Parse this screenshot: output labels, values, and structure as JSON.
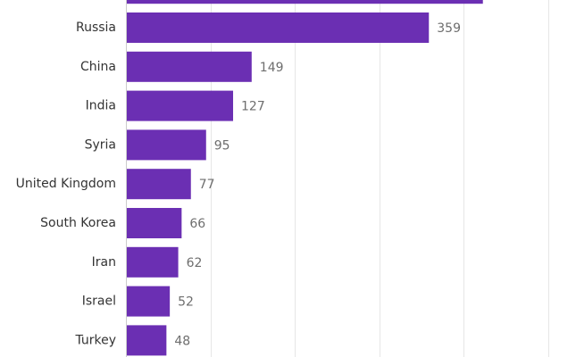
{
  "chart_data": {
    "type": "bar",
    "orientation": "horizontal",
    "categories": [
      "Russia",
      "China",
      "India",
      "Syria",
      "United Kingdom",
      "South Korea",
      "Iran",
      "Israel",
      "Turkey"
    ],
    "values": [
      359,
      149,
      127,
      95,
      77,
      66,
      62,
      52,
      48
    ],
    "data_labels": [
      "359",
      "149",
      "127",
      "95",
      "77",
      "66",
      "62",
      "52",
      "48"
    ],
    "partially_visible_top_bar": {
      "value": 423
    },
    "xlim": [
      0,
      500
    ],
    "grid": true,
    "bar_color": "#6b2fb3"
  }
}
